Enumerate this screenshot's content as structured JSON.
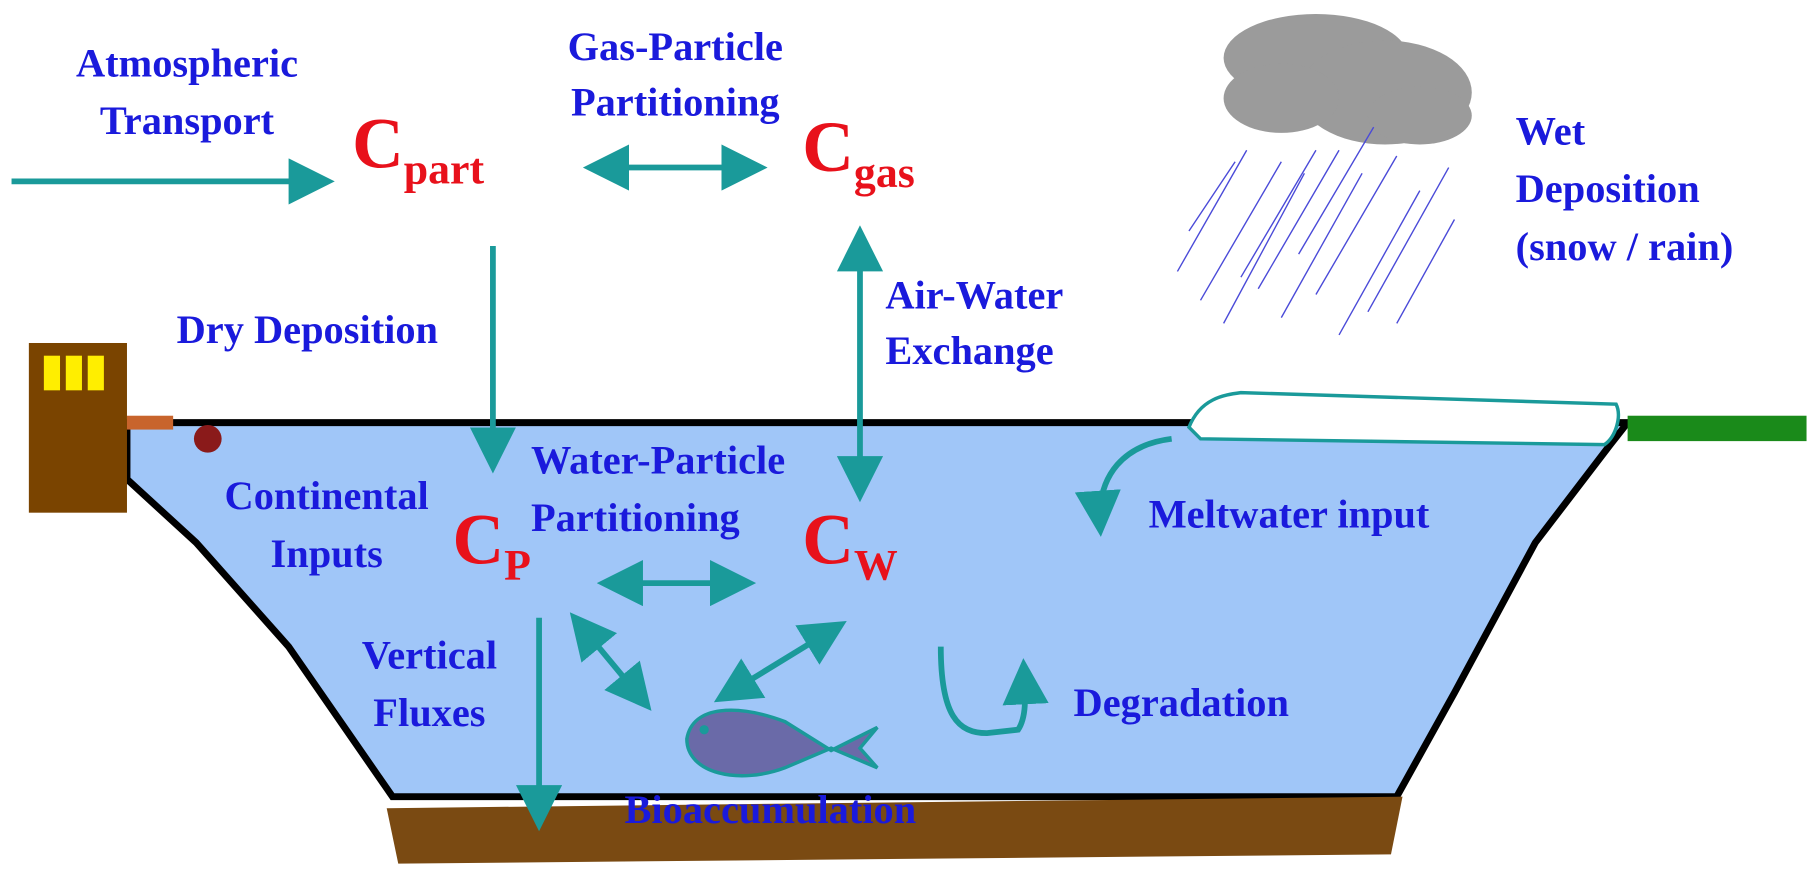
{
  "labels": {
    "atmospheric_transport": [
      "Atmospheric",
      "Transport"
    ],
    "gas_particle": [
      "Gas-Particle",
      "Partitioning"
    ],
    "wet_deposition": [
      "Wet",
      "Deposition",
      "(snow / rain)"
    ],
    "dry_deposition": "Dry Deposition",
    "air_water": [
      "Air-Water",
      "Exchange"
    ],
    "water_particle": [
      "Water-Particle",
      "Partitioning"
    ],
    "continental": [
      "Continental",
      "Inputs"
    ],
    "meltwater": "Meltwater input",
    "vertical": [
      "Vertical",
      "Fluxes"
    ],
    "degradation": "Degradation",
    "bioaccumulation": "Bioaccumulation"
  },
  "concentrations": {
    "part": {
      "symbol": "C",
      "subscript": "part"
    },
    "gas": {
      "symbol": "C",
      "subscript": "gas"
    },
    "particle": {
      "symbol": "C",
      "subscript": "P"
    },
    "water": {
      "symbol": "C",
      "subscript": "W"
    }
  }
}
